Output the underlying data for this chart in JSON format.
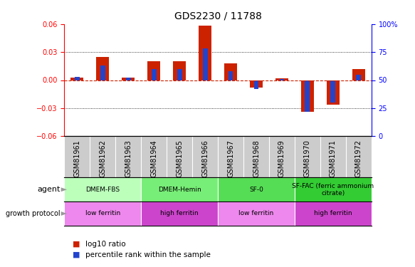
{
  "title": "GDS2230 / 11788",
  "samples": [
    "GSM81961",
    "GSM81962",
    "GSM81963",
    "GSM81964",
    "GSM81965",
    "GSM81966",
    "GSM81967",
    "GSM81968",
    "GSM81969",
    "GSM81970",
    "GSM81971",
    "GSM81972"
  ],
  "log10_ratio": [
    0.003,
    0.025,
    0.003,
    0.02,
    0.02,
    0.058,
    0.018,
    -0.008,
    0.002,
    -0.034,
    -0.026,
    0.012
  ],
  "percentile_rank_raw": [
    53,
    63,
    52,
    60,
    60,
    78,
    58,
    42,
    51,
    22,
    30,
    55
  ],
  "ylim_left": [
    -0.06,
    0.06
  ],
  "ylim_right": [
    0,
    100
  ],
  "yticks_left": [
    -0.06,
    -0.03,
    0,
    0.03,
    0.06
  ],
  "yticks_right": [
    0,
    25,
    50,
    75,
    100
  ],
  "agent_groups": [
    {
      "label": "DMEM-FBS",
      "start": 0,
      "end": 3,
      "color": "#bbffbb"
    },
    {
      "label": "DMEM-Hemin",
      "start": 3,
      "end": 6,
      "color": "#77ee77"
    },
    {
      "label": "SF-0",
      "start": 6,
      "end": 9,
      "color": "#55dd55"
    },
    {
      "label": "SF-FAC (ferric ammonium\ncitrate)",
      "start": 9,
      "end": 12,
      "color": "#33cc33"
    }
  ],
  "growth_groups": [
    {
      "label": "low ferritin",
      "start": 0,
      "end": 3,
      "color": "#ee88ee"
    },
    {
      "label": "high ferritin",
      "start": 3,
      "end": 6,
      "color": "#cc44cc"
    },
    {
      "label": "low ferritin",
      "start": 6,
      "end": 9,
      "color": "#ee88ee"
    },
    {
      "label": "high ferritin",
      "start": 9,
      "end": 12,
      "color": "#cc44cc"
    }
  ],
  "bar_color_red": "#cc2200",
  "bar_color_blue": "#2244cc",
  "tick_label_fontsize": 7,
  "axis_fontsize": 8,
  "title_fontsize": 10,
  "xlabel_gray_bg": "#cccccc"
}
